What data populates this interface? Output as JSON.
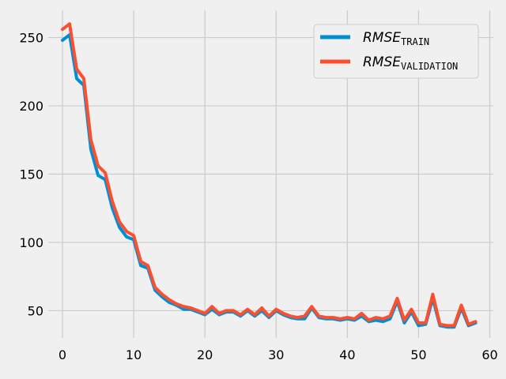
{
  "chart_data": {
    "type": "line",
    "title": "",
    "xlabel": "",
    "ylabel": "",
    "xlim": [
      -2,
      60.5
    ],
    "ylim": [
      30,
      270
    ],
    "x_ticks": [
      0,
      10,
      20,
      30,
      40,
      50,
      60
    ],
    "y_ticks": [
      50,
      100,
      150,
      200,
      250
    ],
    "grid": true,
    "legend_position": "top-right",
    "background_color": "#f0f0f0",
    "grid_color": "#cbcbcb",
    "series": [
      {
        "name": "RMSE",
        "name_subscript": "TRAIN",
        "color": "#008fd5",
        "x": [
          0,
          1,
          2,
          3,
          4,
          5,
          6,
          7,
          8,
          9,
          10,
          11,
          12,
          13,
          14,
          15,
          16,
          17,
          18,
          19,
          20,
          21,
          22,
          23,
          24,
          25,
          26,
          27,
          28,
          29,
          30,
          31,
          32,
          33,
          34,
          35,
          36,
          37,
          38,
          39,
          40,
          41,
          42,
          43,
          44,
          45,
          46,
          47,
          48,
          49,
          50,
          51,
          52,
          53,
          54,
          55,
          56,
          57,
          58
        ],
        "y": [
          248,
          252,
          220,
          215,
          168,
          149,
          146,
          125,
          111,
          104,
          102,
          83,
          81,
          65,
          60,
          56,
          54,
          51,
          51,
          49,
          47,
          51,
          47,
          49,
          49,
          46,
          50,
          46,
          50,
          45,
          50,
          47,
          45,
          44,
          44,
          52,
          45,
          44,
          44,
          43,
          44,
          43,
          46,
          42,
          43,
          42,
          44,
          57,
          41,
          49,
          39,
          40,
          59,
          39,
          38,
          38,
          52,
          39,
          41
        ]
      },
      {
        "name": "RMSE",
        "name_subscript": "VALIDATION",
        "color": "#fc4f30",
        "x": [
          0,
          1,
          2,
          3,
          4,
          5,
          6,
          7,
          8,
          9,
          10,
          11,
          12,
          13,
          14,
          15,
          16,
          17,
          18,
          19,
          20,
          21,
          22,
          23,
          24,
          25,
          26,
          27,
          28,
          29,
          30,
          31,
          32,
          33,
          34,
          35,
          36,
          37,
          38,
          39,
          40,
          41,
          42,
          43,
          44,
          45,
          46,
          47,
          48,
          49,
          50,
          51,
          52,
          53,
          54,
          55,
          56,
          57,
          58
        ],
        "y": [
          256,
          260,
          227,
          220,
          175,
          156,
          151,
          130,
          115,
          108,
          105,
          86,
          83,
          67,
          62,
          58,
          55,
          53,
          52,
          50,
          48,
          53,
          48,
          50,
          50,
          47,
          51,
          47,
          52,
          46,
          51,
          48,
          46,
          45,
          46,
          53,
          46,
          45,
          45,
          44,
          45,
          44,
          48,
          43,
          45,
          44,
          46,
          59,
          43,
          51,
          41,
          41,
          62,
          40,
          39,
          39,
          54,
          40,
          42
        ]
      }
    ]
  }
}
